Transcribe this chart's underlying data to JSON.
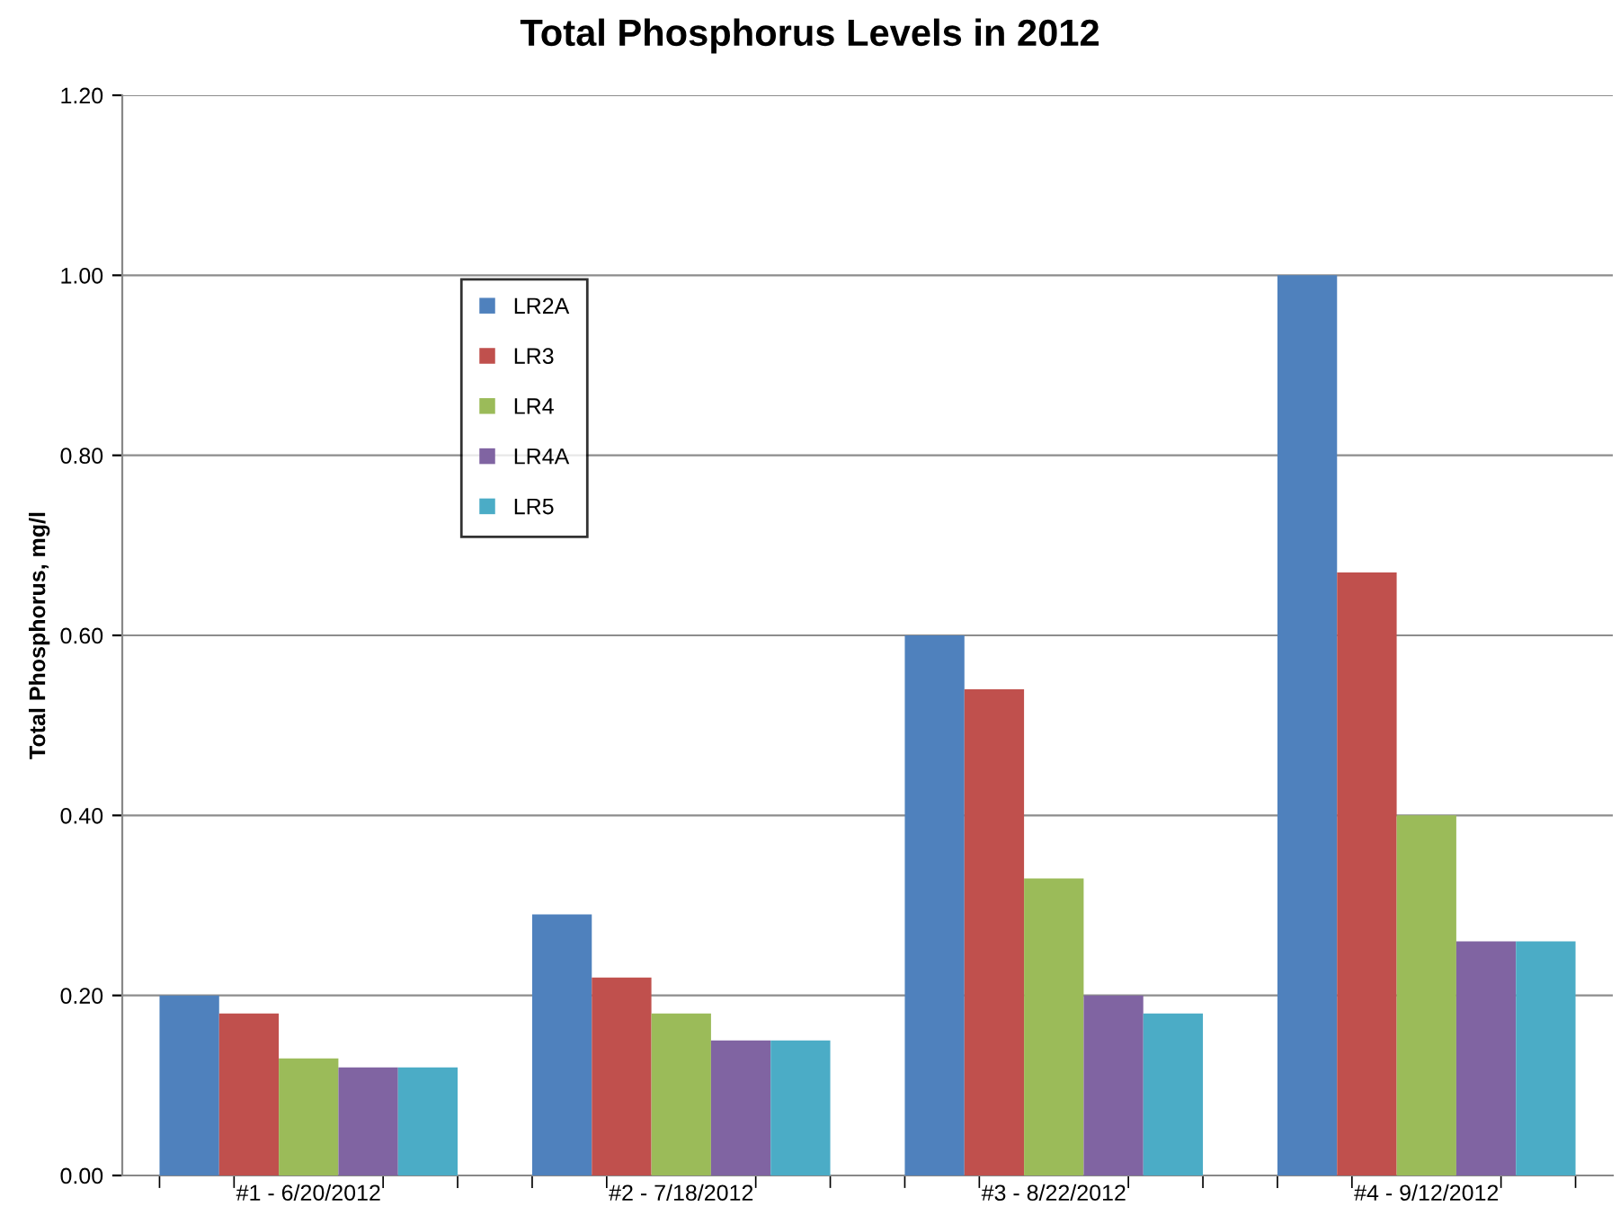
{
  "chart_data": {
    "type": "bar",
    "title": "Total Phosphorus Levels in 2012",
    "ylabel": "Total Phosphorus, mg/l",
    "categories": [
      "#1 - 6/20/2012",
      "#2 - 7/18/2012",
      "#3 - 8/22/2012",
      "#4 - 9/12/2012"
    ],
    "series": [
      {
        "name": "LR2A",
        "color": "#4f81bd",
        "values": [
          0.2,
          0.29,
          0.6,
          1.0
        ]
      },
      {
        "name": "LR3",
        "color": "#c0504d",
        "values": [
          0.18,
          0.22,
          0.54,
          0.67
        ]
      },
      {
        "name": "LR4",
        "color": "#9bbb59",
        "values": [
          0.13,
          0.18,
          0.33,
          0.4
        ]
      },
      {
        "name": "LR4A",
        "color": "#8064a2",
        "values": [
          0.12,
          0.15,
          0.2,
          0.26
        ]
      },
      {
        "name": "LR5",
        "color": "#4bacc6",
        "values": [
          0.12,
          0.15,
          0.18,
          0.26
        ]
      }
    ],
    "ylim": [
      0,
      1.2
    ],
    "yticks": [
      {
        "value": 0,
        "label": "0.00"
      },
      {
        "value": 0.2,
        "label": "0.20"
      },
      {
        "value": 0.4,
        "label": "0.40"
      },
      {
        "value": 0.6,
        "label": "0.60"
      },
      {
        "value": 0.8,
        "label": "0.80"
      },
      {
        "value": 1.0,
        "label": "1.00"
      },
      {
        "value": 1.2,
        "label": "1.20"
      }
    ],
    "grid": "y",
    "legend": "top left"
  }
}
